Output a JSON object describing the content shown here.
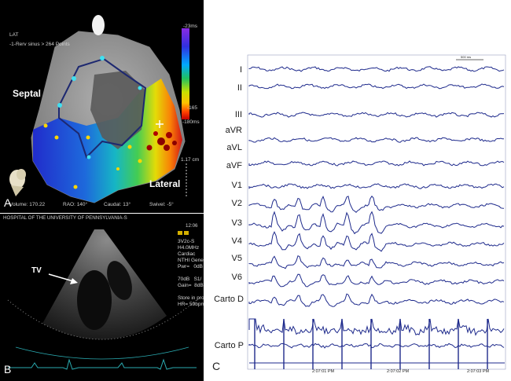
{
  "panel_a": {
    "letter": "A",
    "map_type": "LAT",
    "map_info": "-1-Rerv sinus > 264 Points",
    "scale_top": "-23ms",
    "scale_mid": "-165",
    "scale_bottom": "-180ms",
    "scale_side": "1.17 cm",
    "septal": "Septal",
    "lateral": "Lateral",
    "volume": "Volume: 170.22",
    "rao": "RAO: 140°",
    "caudal": "Caudal: 13°",
    "swivel": "Swivel: -5°",
    "colors": [
      "#8e2be2",
      "#3030e0",
      "#00a8ff",
      "#20c060",
      "#c8e000",
      "#ffc000",
      "#ff4000",
      "#d00000"
    ]
  },
  "panel_b": {
    "letter": "B",
    "header": "HOSPITAL OF THE UNIVERSITY OF PENNSYLVANIA-S",
    "time": "12:06",
    "side_text": "3V2c-S\nH4.0MHz\nCardiac\nNTHI General\nPwr=   0dB\n\n70dB   S1/\nGain=  8dB\n\nStore in proc\nHR= 59bpm",
    "tv_label": "TV"
  },
  "panel_c": {
    "letter": "C",
    "scale_bar": "500 ms",
    "leads": [
      "I",
      "II",
      "III",
      "aVR",
      "aVL",
      "aVF",
      "V1",
      "V2",
      "V3",
      "V4",
      "V5",
      "V6",
      "Carto D",
      "Carto P"
    ],
    "times": [
      "2:07:01 PM",
      "2:07:02 PM",
      "2:07:03 PM"
    ],
    "trace_color": "#1e2a8c"
  }
}
